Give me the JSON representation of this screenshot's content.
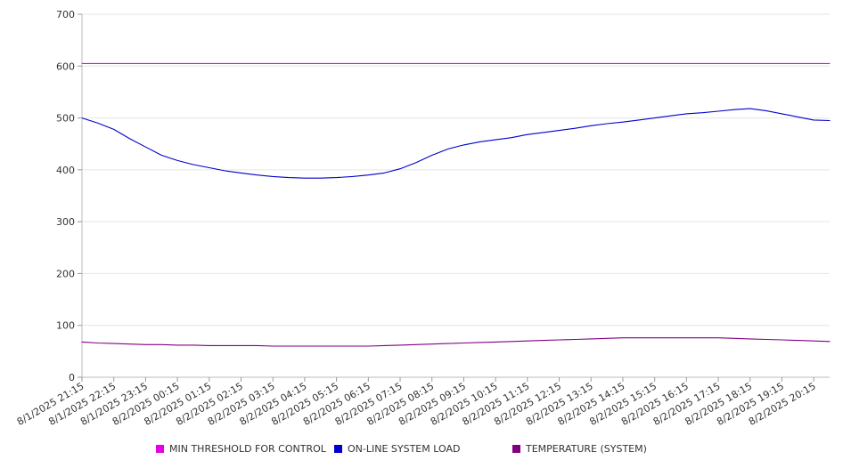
{
  "chart_data": {
    "type": "line",
    "title": "",
    "xlabel": "",
    "ylabel": "",
    "ylim": [
      0,
      700
    ],
    "y_ticks": [
      0,
      100,
      200,
      300,
      400,
      500,
      600,
      700
    ],
    "grid": "horizontal",
    "legend_placement": "bottom",
    "x_tick_labels": [
      "8/1/2025 21:15",
      "8/1/2025 22:15",
      "8/1/2025 23:15",
      "8/2/2025 00:15",
      "8/2/2025 01:15",
      "8/2/2025 02:15",
      "8/2/2025 03:15",
      "8/2/2025 04:15",
      "8/2/2025 05:15",
      "8/2/2025 06:15",
      "8/2/2025 07:15",
      "8/2/2025 08:15",
      "8/2/2025 09:15",
      "8/2/2025 10:15",
      "8/2/2025 11:15",
      "8/2/2025 12:15",
      "8/2/2025 13:15",
      "8/2/2025 14:15",
      "8/2/2025 15:15",
      "8/2/2025 16:15",
      "8/2/2025 17:15",
      "8/2/2025 18:15",
      "8/2/2025 19:15",
      "8/2/2025 20:15"
    ],
    "x": [
      "8/1/2025 21:15",
      "8/1/2025 21:45",
      "8/1/2025 22:15",
      "8/1/2025 22:45",
      "8/1/2025 23:15",
      "8/1/2025 23:45",
      "8/2/2025 00:15",
      "8/2/2025 00:45",
      "8/2/2025 01:15",
      "8/2/2025 01:45",
      "8/2/2025 02:15",
      "8/2/2025 02:45",
      "8/2/2025 03:15",
      "8/2/2025 03:45",
      "8/2/2025 04:15",
      "8/2/2025 04:45",
      "8/2/2025 05:15",
      "8/2/2025 05:45",
      "8/2/2025 06:15",
      "8/2/2025 06:45",
      "8/2/2025 07:15",
      "8/2/2025 07:45",
      "8/2/2025 08:15",
      "8/2/2025 08:45",
      "8/2/2025 09:15",
      "8/2/2025 09:45",
      "8/2/2025 10:15",
      "8/2/2025 10:45",
      "8/2/2025 11:15",
      "8/2/2025 11:45",
      "8/2/2025 12:15",
      "8/2/2025 12:45",
      "8/2/2025 13:15",
      "8/2/2025 13:45",
      "8/2/2025 14:15",
      "8/2/2025 14:45",
      "8/2/2025 15:15",
      "8/2/2025 15:45",
      "8/2/2025 16:15",
      "8/2/2025 16:45",
      "8/2/2025 17:15",
      "8/2/2025 17:45",
      "8/2/2025 18:15",
      "8/2/2025 18:45",
      "8/2/2025 19:15",
      "8/2/2025 19:45",
      "8/2/2025 20:15",
      "8/2/2025 20:45"
    ],
    "series": [
      {
        "name": "MIN THRESHOLD FOR CONTROL",
        "color": "#e600e6",
        "values": [
          605,
          605,
          605,
          605,
          605,
          605,
          605,
          605,
          605,
          605,
          605,
          605,
          605,
          605,
          605,
          605,
          605,
          605,
          605,
          605,
          605,
          605,
          605,
          605,
          605,
          605,
          605,
          605,
          605,
          605,
          605,
          605,
          605,
          605,
          605,
          605,
          605,
          605,
          605,
          605,
          605,
          605,
          605,
          605,
          605,
          605,
          605,
          605
        ]
      },
      {
        "name": "ON-LINE SYSTEM LOAD",
        "color": "#0000cc",
        "values": [
          500,
          490,
          478,
          460,
          444,
          428,
          418,
          410,
          404,
          398,
          394,
          390,
          387,
          385,
          384,
          384,
          385,
          387,
          390,
          394,
          402,
          414,
          428,
          440,
          448,
          454,
          458,
          462,
          468,
          472,
          476,
          480,
          485,
          489,
          492,
          496,
          500,
          504,
          508,
          510,
          513,
          516,
          518,
          514,
          508,
          502,
          496,
          495
        ]
      },
      {
        "name": "TEMPERATURE (SYSTEM)",
        "color": "#800080",
        "values": [
          68,
          66,
          65,
          64,
          63,
          63,
          62,
          62,
          61,
          61,
          61,
          61,
          60,
          60,
          60,
          60,
          60,
          60,
          60,
          61,
          62,
          63,
          64,
          65,
          66,
          67,
          68,
          69,
          70,
          71,
          72,
          73,
          74,
          75,
          76,
          76,
          76,
          76,
          76,
          76,
          76,
          75,
          74,
          73,
          72,
          71,
          70,
          69
        ]
      }
    ]
  }
}
